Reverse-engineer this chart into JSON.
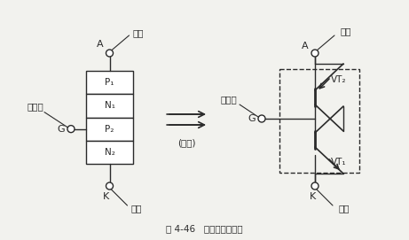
{
  "bg_color": "#f2f2ee",
  "line_color": "#2a2a2a",
  "text_color": "#2a2a2a",
  "fig_caption": "图 4-46   单向晶闸管原理",
  "arrow_symbol": "⇒",
  "equiv_text": "(等效)",
  "box_labels": [
    "P₁",
    "N₁",
    "P₂",
    "N₂"
  ],
  "label_yangji": "阳极",
  "label_yinji": "阴极",
  "label_kongzhiji": "控制极",
  "label_G": "G",
  "label_A": "A",
  "label_K": "K",
  "label_VT1": "VT₁",
  "label_VT2": "VT₂"
}
